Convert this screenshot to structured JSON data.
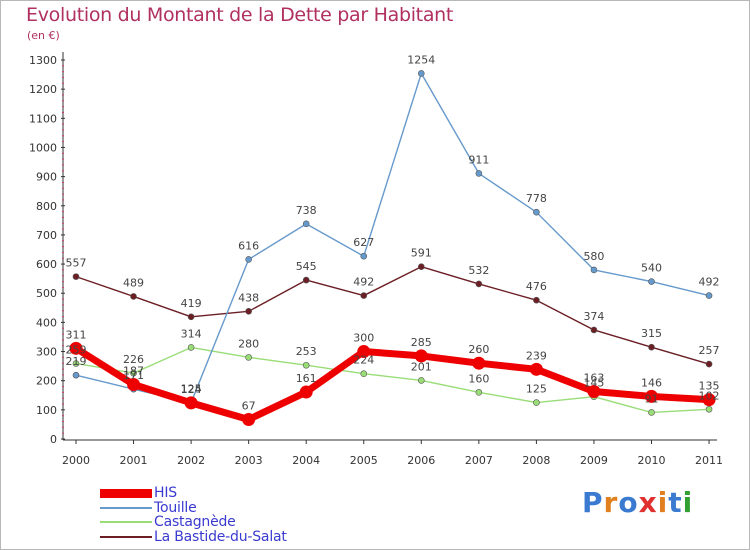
{
  "title": "Evolution du Montant de la Dette par Habitant",
  "subtitle": "(en €)",
  "logo": {
    "text": "Proxiti",
    "colors": [
      "#3a7ad0",
      "#e08020",
      "#3a7ad0",
      "#e03030",
      "#e08020",
      "#3a7ad0",
      "#30a030"
    ]
  },
  "chart_data": {
    "type": "line",
    "x": [
      "2000",
      "2001",
      "2002",
      "2003",
      "2004",
      "2005",
      "2006",
      "2007",
      "2008",
      "2009",
      "2010",
      "2011"
    ],
    "ylim": [
      0,
      1300
    ],
    "yticks": [
      "0",
      "100",
      "200",
      "300",
      "400",
      "500",
      "600",
      "700",
      "800",
      "900",
      "1000",
      "1100",
      "1200",
      "1300"
    ],
    "grid": false,
    "legend": "bottom-left",
    "series": [
      {
        "name": "La Bastide-du-Salat",
        "color": "#6b1f25",
        "width": 1.4,
        "values": [
          557,
          489,
          419,
          438,
          545,
          492,
          591,
          532,
          476,
          374,
          315,
          257
        ],
        "labels": [
          "557",
          "489",
          "419",
          "438",
          "545",
          "492",
          "591",
          "532",
          "476",
          "374",
          "315",
          "257"
        ]
      },
      {
        "name": "Castagnède",
        "color": "#99dd77",
        "width": 1.4,
        "values": [
          259,
          226,
          314,
          280,
          253,
          224,
          201,
          160,
          125,
          145,
          91,
          102
        ],
        "labels": [
          "259",
          "226",
          "314",
          "280",
          "253",
          "224",
          "201",
          "160",
          "125",
          "145",
          "91",
          "102"
        ]
      },
      {
        "name": "Touille",
        "color": "#6699cc",
        "width": 1.4,
        "values": [
          219,
          171,
          125,
          616,
          738,
          627,
          1254,
          911,
          778,
          580,
          540,
          492
        ],
        "labels": [
          "219",
          "171",
          "125",
          "616",
          "738",
          "627",
          "1254",
          "911",
          "778",
          "580",
          "540",
          "492"
        ]
      },
      {
        "name": "HIS",
        "color": "#ee0000",
        "width": 7,
        "values": [
          311,
          187,
          124,
          67,
          161,
          300,
          285,
          260,
          239,
          163,
          146,
          135
        ],
        "labels": [
          "311",
          "187",
          "124",
          "67",
          "161",
          "300",
          "285",
          "260",
          "239",
          "163",
          "146",
          "135"
        ]
      }
    ]
  },
  "legend_items": [
    {
      "name": "HIS",
      "color": "#ee0000"
    },
    {
      "name": "Touille",
      "color": "#6699cc"
    },
    {
      "name": "Castagnède",
      "color": "#99dd77"
    },
    {
      "name": "La Bastide-du-Salat",
      "color": "#6b1f25"
    }
  ]
}
